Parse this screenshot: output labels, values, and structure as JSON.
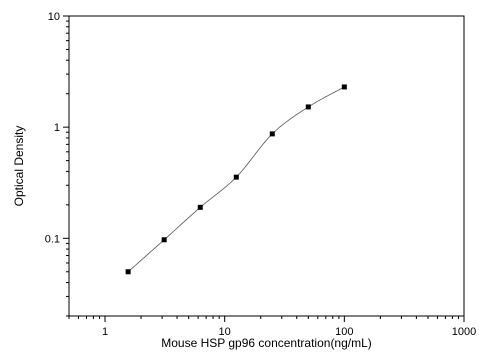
{
  "chart_data": {
    "type": "scatter",
    "title": "",
    "xlabel": "Mouse HSP gp96 concentration(ng/mL)",
    "ylabel": "Optical Density",
    "xscale": "log",
    "yscale": "log",
    "xlim": [
      0.5,
      1000
    ],
    "ylim": [
      0.02,
      10
    ],
    "x_tick_labels": [
      "1",
      "10",
      "100",
      "1000"
    ],
    "y_tick_labels": [
      "0.1",
      "1",
      "10"
    ],
    "grid": false,
    "legend": "none",
    "series": [
      {
        "points": [
          {
            "x": 1.56,
            "y": 0.05
          },
          {
            "x": 3.12,
            "y": 0.097
          },
          {
            "x": 6.25,
            "y": 0.19
          },
          {
            "x": 12.5,
            "y": 0.355
          },
          {
            "x": 25,
            "y": 0.87
          },
          {
            "x": 50,
            "y": 1.52
          },
          {
            "x": 100,
            "y": 2.3
          }
        ],
        "marker": "square",
        "color": "#000000"
      }
    ],
    "fit_curve": {
      "type": "four-parameter logistic",
      "color": "#555555"
    }
  }
}
